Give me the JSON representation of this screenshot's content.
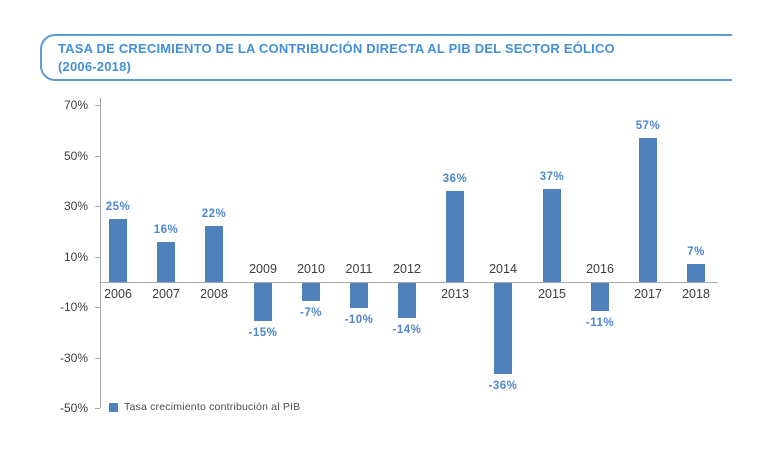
{
  "title": {
    "line1": "TASA DE CRECIMIENTO DE LA CONTRIBUCIÓN DIRECTA AL PIB DEL SECTOR EÓLICO",
    "line2": "(2006-2018)"
  },
  "chart_data": {
    "type": "bar",
    "title": "TASA DE CRECIMIENTO DE LA CONTRIBUCIÓN DIRECTA AL PIB DEL SECTOR EÓLICO (2006-2018)",
    "categories": [
      "2006",
      "2007",
      "2008",
      "2009",
      "2010",
      "2011",
      "2012",
      "2013",
      "2014",
      "2015",
      "2016",
      "2017",
      "2018"
    ],
    "values": [
      25,
      16,
      22,
      -15,
      -7,
      -10,
      -14,
      36,
      -36,
      37,
      -11,
      57,
      7
    ],
    "value_labels": [
      "25%",
      "16%",
      "22%",
      "-15%",
      "-7%",
      "-10%",
      "-14%",
      "36%",
      "-36%",
      "37%",
      "-11%",
      "57%",
      "7%"
    ],
    "unit": "%",
    "xlabel": "",
    "ylabel": "",
    "ylim": [
      -50,
      70
    ],
    "y_ticks": [
      70,
      50,
      30,
      10,
      -10,
      -30,
      -50
    ],
    "y_tick_labels": [
      "70%",
      "50%",
      "30%",
      "10%",
      "-10%",
      "-30%",
      "-50%"
    ],
    "grid": false,
    "legend_position": "bottom-left",
    "legend": "Tasa crecimiento contribución al PIB"
  },
  "colors": {
    "bar": "#4f81bd",
    "value_label": "#4e87cd",
    "title_text": "#4390d7",
    "title_border": "#5b9bd5",
    "axis": "#a8a8a8",
    "tick_text": "#3d3d3d"
  }
}
